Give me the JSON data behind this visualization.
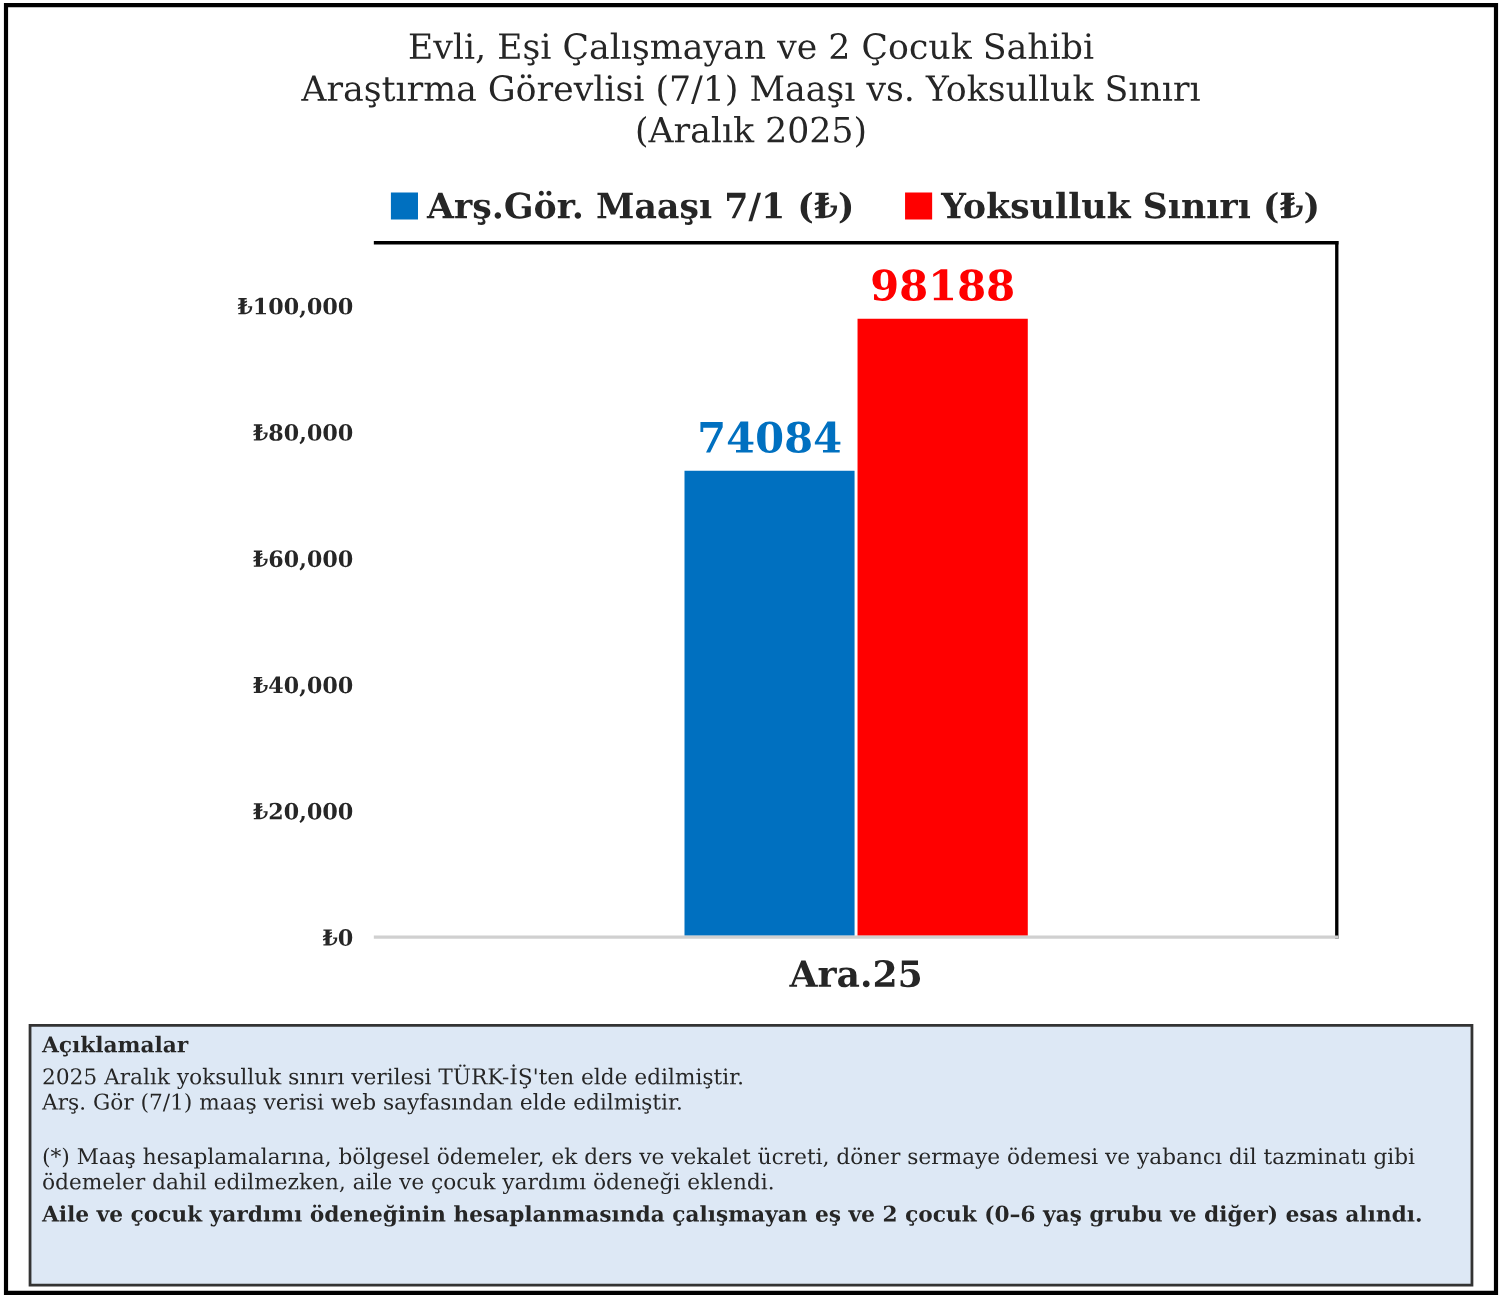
{
  "chart_data": {
    "type": "bar",
    "title": "Evli, Eşi Çalışmayan ve 2 Çocuk Sahibi\nAraştırma Görevlisi (7/1) Maaşı vs. Yoksulluk Sınırı\n(Aralık 2025)",
    "categories": [
      "Ara.25"
    ],
    "series": [
      {
        "name": "Arş.Gör. Maaşı 7/1 (₺)",
        "color": "#0070c0",
        "values": [
          74084
        ]
      },
      {
        "name": "Yoksulluk Sınırı (₺)",
        "color": "#ff0000",
        "values": [
          98188
        ]
      }
    ],
    "ylim": [
      0,
      110000
    ],
    "yticks": [
      {
        "value": 0,
        "label": "₺0"
      },
      {
        "value": 20000,
        "label": "₺20,000"
      },
      {
        "value": 40000,
        "label": "₺40,000"
      },
      {
        "value": 60000,
        "label": "₺60,000"
      },
      {
        "value": 80000,
        "label": "₺80,000"
      },
      {
        "value": 100000,
        "label": "₺100,000"
      }
    ],
    "data_labels": true,
    "legend": "top",
    "grid": false,
    "annotations": [
      "Açıklamalar",
      "2025 Aralık yoksulluk sınırı verilesi TÜRK-İŞ'ten elde edilmiştir.",
      "Arş. Gör (7/1) maaş verisi web sayfasından elde edilmiştir.",
      "(*) Maaş hesaplamalarına, bölgesel ödemeler, ek ders ve vekalet ücreti, döner sermaye ödemesi ve yabancı dil tazminatı gibi ödemeler dahil edilmezken, aile ve çocuk yardımı ödeneği eklendi.",
      "Aile ve çocuk yardımı ödeneğinin hesaplanmasında çalışmayan eş ve 2 çocuk (0–6 yaş grubu ve diğer) esas alındı."
    ]
  }
}
